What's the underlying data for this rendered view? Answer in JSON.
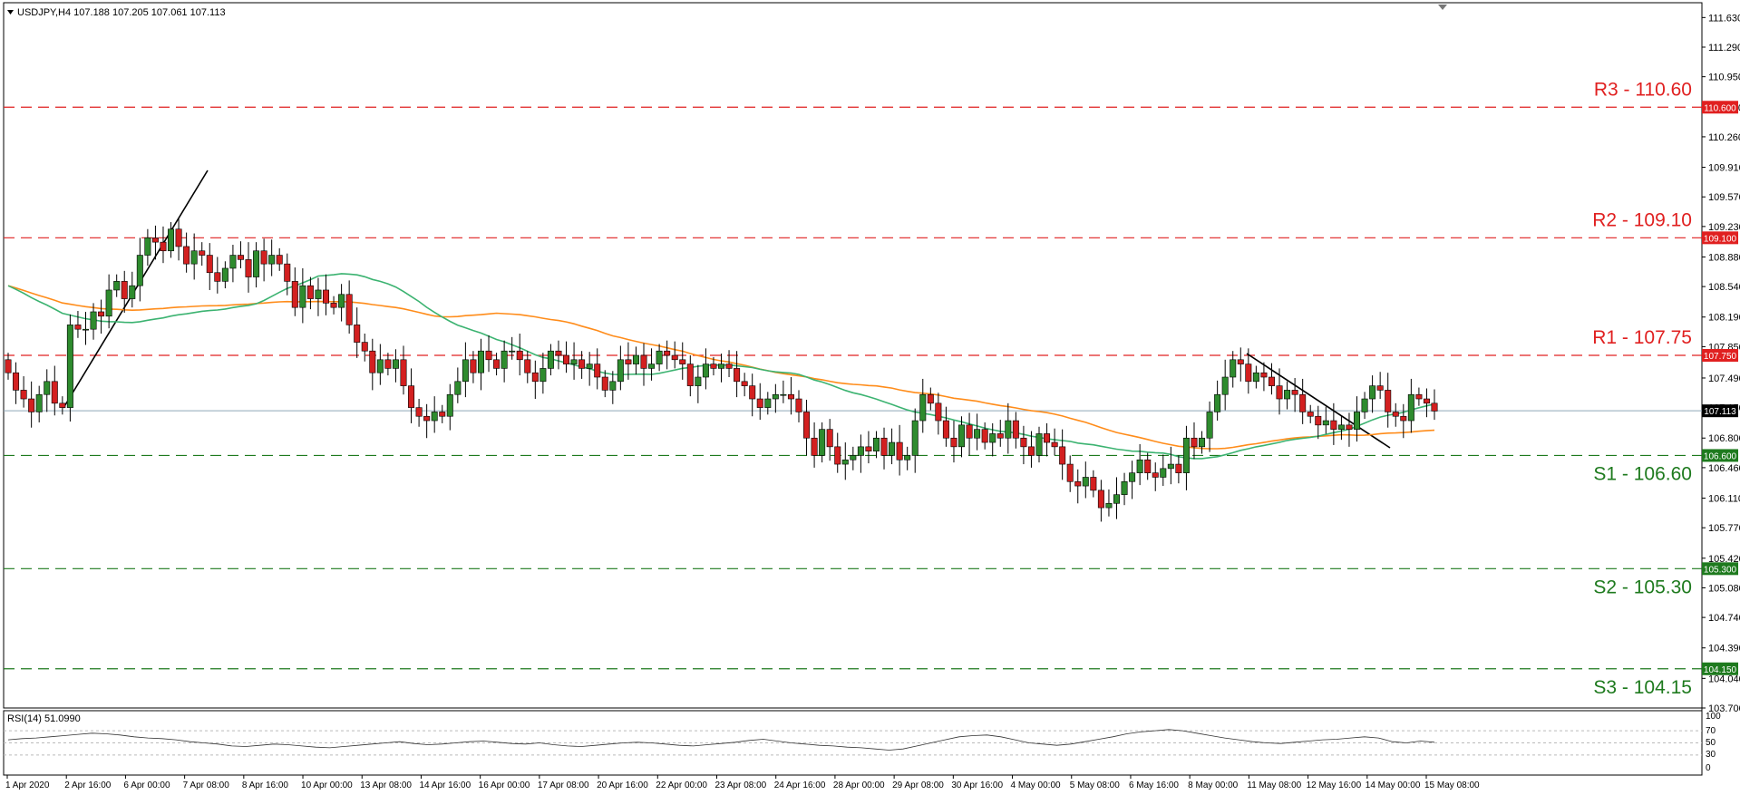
{
  "header": {
    "symbol_line": "USDJPY,H4  107.188 107.205 107.061 107.113"
  },
  "rsi_panel": {
    "label": "RSI(14) 51.0990",
    "ticks": [
      "100",
      "70",
      "50",
      "30",
      "0"
    ]
  },
  "colors": {
    "bull": "#2e8b2e",
    "bear": "#d32020",
    "ma_fast": "#3cb371",
    "ma_slow": "#ff8c1a",
    "resistance": "#e02020",
    "support": "#1e7a1e",
    "current_price_line": "#8ea7b8"
  },
  "chart_data": {
    "type": "candlestick",
    "y_ticks": [
      "111.630",
      "111.290",
      "110.950",
      "110.600",
      "110.260",
      "109.910",
      "109.570",
      "109.230",
      "108.880",
      "108.540",
      "108.190",
      "107.850",
      "107.490",
      "107.150",
      "106.800",
      "106.460",
      "106.110",
      "105.770",
      "105.420",
      "105.080",
      "104.740",
      "104.390",
      "104.040",
      "103.700"
    ],
    "ylim": [
      103.7,
      111.8
    ],
    "x_labels": [
      "1 Apr 2020",
      "2 Apr 16:00",
      "6 Apr 00:00",
      "7 Apr 08:00",
      "8 Apr 16:00",
      "10 Apr 00:00",
      "13 Apr 08:00",
      "14 Apr 16:00",
      "16 Apr 00:00",
      "17 Apr 08:00",
      "20 Apr 16:00",
      "22 Apr 00:00",
      "23 Apr 08:00",
      "24 Apr 16:00",
      "28 Apr 00:00",
      "29 Apr 08:00",
      "30 Apr 16:00",
      "4 May 00:00",
      "5 May 08:00",
      "6 May 16:00",
      "8 May 00:00",
      "11 May 08:00",
      "12 May 16:00",
      "14 May 00:00",
      "15 May 08:00"
    ],
    "levels": [
      {
        "name": "R3 - 110.60",
        "value": 110.6,
        "tag": "110.600",
        "kind": "resistance"
      },
      {
        "name": "R2 - 109.10",
        "value": 109.1,
        "tag": "109.100",
        "kind": "resistance"
      },
      {
        "name": "R1 - 107.75",
        "value": 107.75,
        "tag": "107.750",
        "kind": "resistance"
      },
      {
        "name": "S1 - 106.60",
        "value": 106.6,
        "tag": "106.600",
        "kind": "support"
      },
      {
        "name": "S2 - 105.30",
        "value": 105.3,
        "tag": "105.300",
        "kind": "support"
      },
      {
        "name": "S3 - 104.15",
        "value": 104.15,
        "tag": "104.150",
        "kind": "support"
      }
    ],
    "current_price": {
      "value": 107.113,
      "tag": "107.113"
    },
    "closes": [
      107.55,
      107.35,
      107.25,
      107.1,
      107.3,
      107.45,
      107.2,
      107.15,
      108.1,
      108.05,
      108.05,
      108.25,
      108.2,
      108.5,
      108.6,
      108.4,
      108.55,
      108.9,
      109.1,
      109.05,
      108.95,
      109.2,
      109.0,
      108.8,
      108.95,
      108.9,
      108.7,
      108.6,
      108.75,
      108.9,
      108.85,
      108.65,
      108.95,
      108.8,
      108.9,
      108.8,
      108.6,
      108.3,
      108.55,
      108.4,
      108.5,
      108.35,
      108.3,
      108.45,
      108.1,
      107.9,
      107.8,
      107.55,
      107.7,
      107.6,
      107.7,
      107.4,
      107.15,
      107.05,
      107.0,
      107.1,
      107.05,
      107.3,
      107.45,
      107.7,
      107.55,
      107.8,
      107.7,
      107.6,
      107.8,
      107.8,
      107.7,
      107.55,
      107.45,
      107.6,
      107.8,
      107.75,
      107.65,
      107.7,
      107.6,
      107.65,
      107.5,
      107.35,
      107.45,
      107.7,
      107.65,
      107.75,
      107.6,
      107.65,
      107.8,
      107.75,
      107.7,
      107.65,
      107.4,
      107.5,
      107.65,
      107.6,
      107.65,
      107.6,
      107.45,
      107.4,
      107.25,
      107.15,
      107.25,
      107.3,
      107.3,
      107.25,
      107.1,
      106.8,
      106.6,
      106.9,
      106.7,
      106.5,
      106.55,
      106.6,
      106.7,
      106.65,
      106.8,
      106.6,
      106.75,
      106.55,
      106.6,
      107.0,
      107.3,
      107.2,
      107.0,
      106.8,
      106.7,
      106.95,
      106.8,
      106.9,
      106.75,
      106.85,
      106.8,
      107.0,
      106.8,
      106.7,
      106.6,
      106.85,
      106.75,
      106.7,
      106.5,
      106.3,
      106.25,
      106.35,
      106.2,
      106.0,
      106.05,
      106.15,
      106.3,
      106.4,
      106.55,
      106.4,
      106.35,
      106.45,
      106.5,
      106.4,
      106.8,
      106.7,
      106.8,
      107.1,
      107.3,
      107.5,
      107.7,
      107.65,
      107.45,
      107.55,
      107.5,
      107.4,
      107.25,
      107.35,
      107.3,
      107.1,
      107.05,
      106.95,
      107.0,
      106.9,
      106.95,
      106.9,
      107.1,
      107.25,
      107.4,
      107.35,
      107.1,
      107.05,
      107.0,
      107.3,
      107.25,
      107.2,
      107.11
    ],
    "ma_slow": {
      "start": 108.55,
      "end": 107.4
    },
    "ma_fast": {
      "start": 108.55,
      "end": 107.15
    },
    "rsi": [
      55,
      57,
      58,
      60,
      62,
      64,
      66,
      65,
      63,
      60,
      58,
      57,
      55,
      52,
      50,
      48,
      45,
      44,
      46,
      48,
      47,
      45,
      43,
      42,
      44,
      46,
      48,
      50,
      52,
      49,
      47,
      48,
      50,
      52,
      53,
      51,
      49,
      48,
      50,
      47,
      45,
      44,
      46,
      48,
      50,
      51,
      50,
      48,
      46,
      45,
      47,
      49,
      51,
      54,
      56,
      53,
      50,
      48,
      46,
      45,
      43,
      42,
      40,
      38,
      40,
      45,
      50,
      55,
      60,
      62,
      63,
      60,
      55,
      50,
      48,
      46,
      48,
      52,
      56,
      60,
      65,
      68,
      70,
      72,
      70,
      66,
      62,
      58,
      55,
      52,
      50,
      49,
      51,
      53,
      55,
      56,
      58,
      60,
      58,
      52,
      50,
      53,
      51
    ]
  }
}
